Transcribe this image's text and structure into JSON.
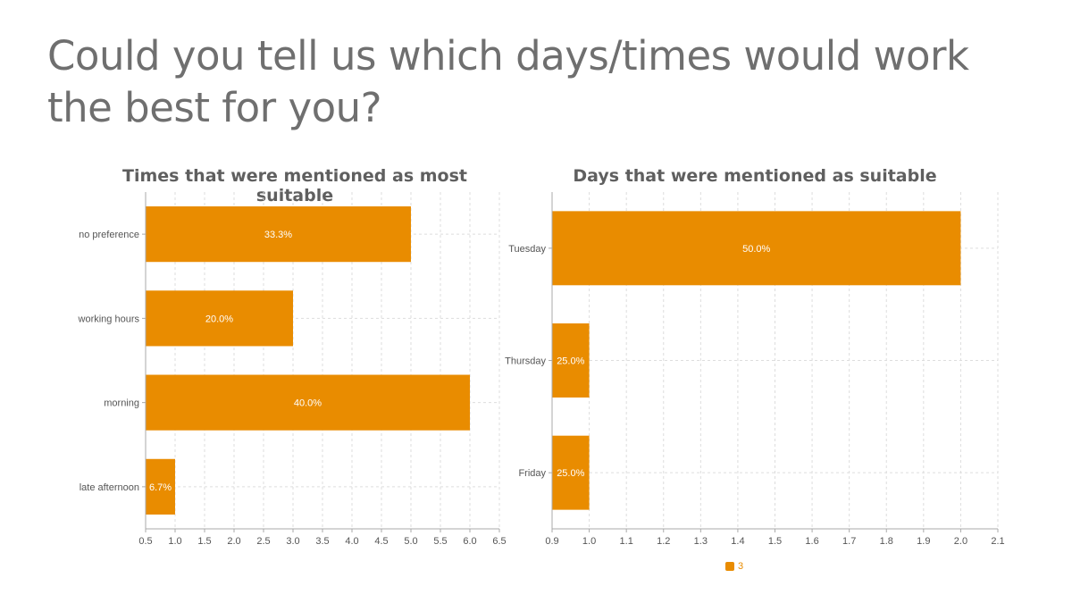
{
  "slide": {
    "title": "Could you tell us which days/times would work the best for you?"
  },
  "colors": {
    "bar": "#e98c00",
    "grid": "#dddddd",
    "axis": "#aaaaaa",
    "tick_text": "#555555",
    "bar_label": "#ffffff"
  },
  "legend": {
    "label": "3"
  },
  "chart_data": [
    {
      "type": "bar",
      "orientation": "horizontal",
      "title": "Times that were mentioned as most suitable",
      "categories": [
        "no preference",
        "working hours",
        "morning",
        "late afternoon"
      ],
      "values": [
        5,
        3,
        6,
        1
      ],
      "labels": [
        "33.3%",
        "20.0%",
        "40.0%",
        "6.7%"
      ],
      "xlim": [
        0.5,
        6.5
      ],
      "xticks": [
        "0.5",
        "1.0",
        "1.5",
        "2.0",
        "2.5",
        "3.0",
        "3.5",
        "4.0",
        "4.5",
        "5.0",
        "5.5",
        "6.0",
        "6.5"
      ],
      "grid": true
    },
    {
      "type": "bar",
      "orientation": "horizontal",
      "title": "Days that were mentioned as suitable",
      "categories": [
        "Tuesday",
        "Thursday",
        "Friday"
      ],
      "values": [
        2,
        1,
        1
      ],
      "labels": [
        "50.0%",
        "25.0%",
        "25.0%"
      ],
      "xlim": [
        0.9,
        2.1
      ],
      "xticks": [
        "0.9",
        "1.0",
        "1.1",
        "1.2",
        "1.3",
        "1.4",
        "1.5",
        "1.6",
        "1.7",
        "1.8",
        "1.9",
        "2.0",
        "2.1"
      ],
      "grid": true,
      "legend": "bottom-center"
    }
  ]
}
